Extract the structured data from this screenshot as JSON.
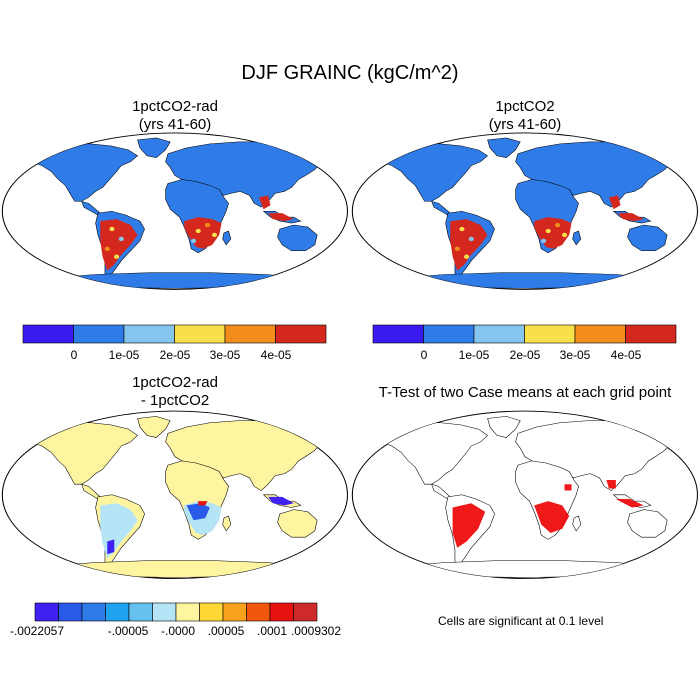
{
  "title": "DJF GRAINC (kgC/m^2)",
  "panels": [
    {
      "id": "rad",
      "title_line1": "1pctCO2-rad",
      "title_line2": "(yrs 41-60)"
    },
    {
      "id": "ctl",
      "title_line1": "1pctCO2",
      "title_line2": "(yrs 41-60)"
    },
    {
      "id": "diff",
      "title_line1": "1pctCO2-rad",
      "title_line2": "- 1pctCO2"
    },
    {
      "id": "ttest",
      "title_line1": "T-Test of two Case means at each grid point",
      "title_line2": ""
    }
  ],
  "colorbar_top": {
    "colors": [
      "#3a1cf0",
      "#2f7ce8",
      "#86c5ee",
      "#f7e04a",
      "#f28c1c",
      "#d4281e"
    ],
    "labels": [
      "0",
      "1e-05",
      "2e-05",
      "3e-05",
      "4e-05"
    ]
  },
  "colorbar_diff": {
    "colors": [
      "#3f21f2",
      "#2a5ae8",
      "#2f7ce8",
      "#1fa3ef",
      "#66c1f0",
      "#b4e4f6",
      "#fff4a0",
      "#ffd737",
      "#f9a21e",
      "#f2560c",
      "#e6120f",
      "#cf2a2a"
    ],
    "labels": [
      "-.0022057",
      "-.00005",
      "-.0000",
      ".00005",
      ".0001",
      ".0009302"
    ]
  },
  "ttest_note": "Cells are significant at 0.1 level",
  "colors": {
    "ocean": "#ffffff",
    "land_base": "#2f7ce8",
    "tropics_high": "#d4281e",
    "diff_base": "#fff4a0",
    "diff_mid": "#b4e4f6",
    "diff_low": "#3f21f2",
    "sig": "#ee0000"
  }
}
